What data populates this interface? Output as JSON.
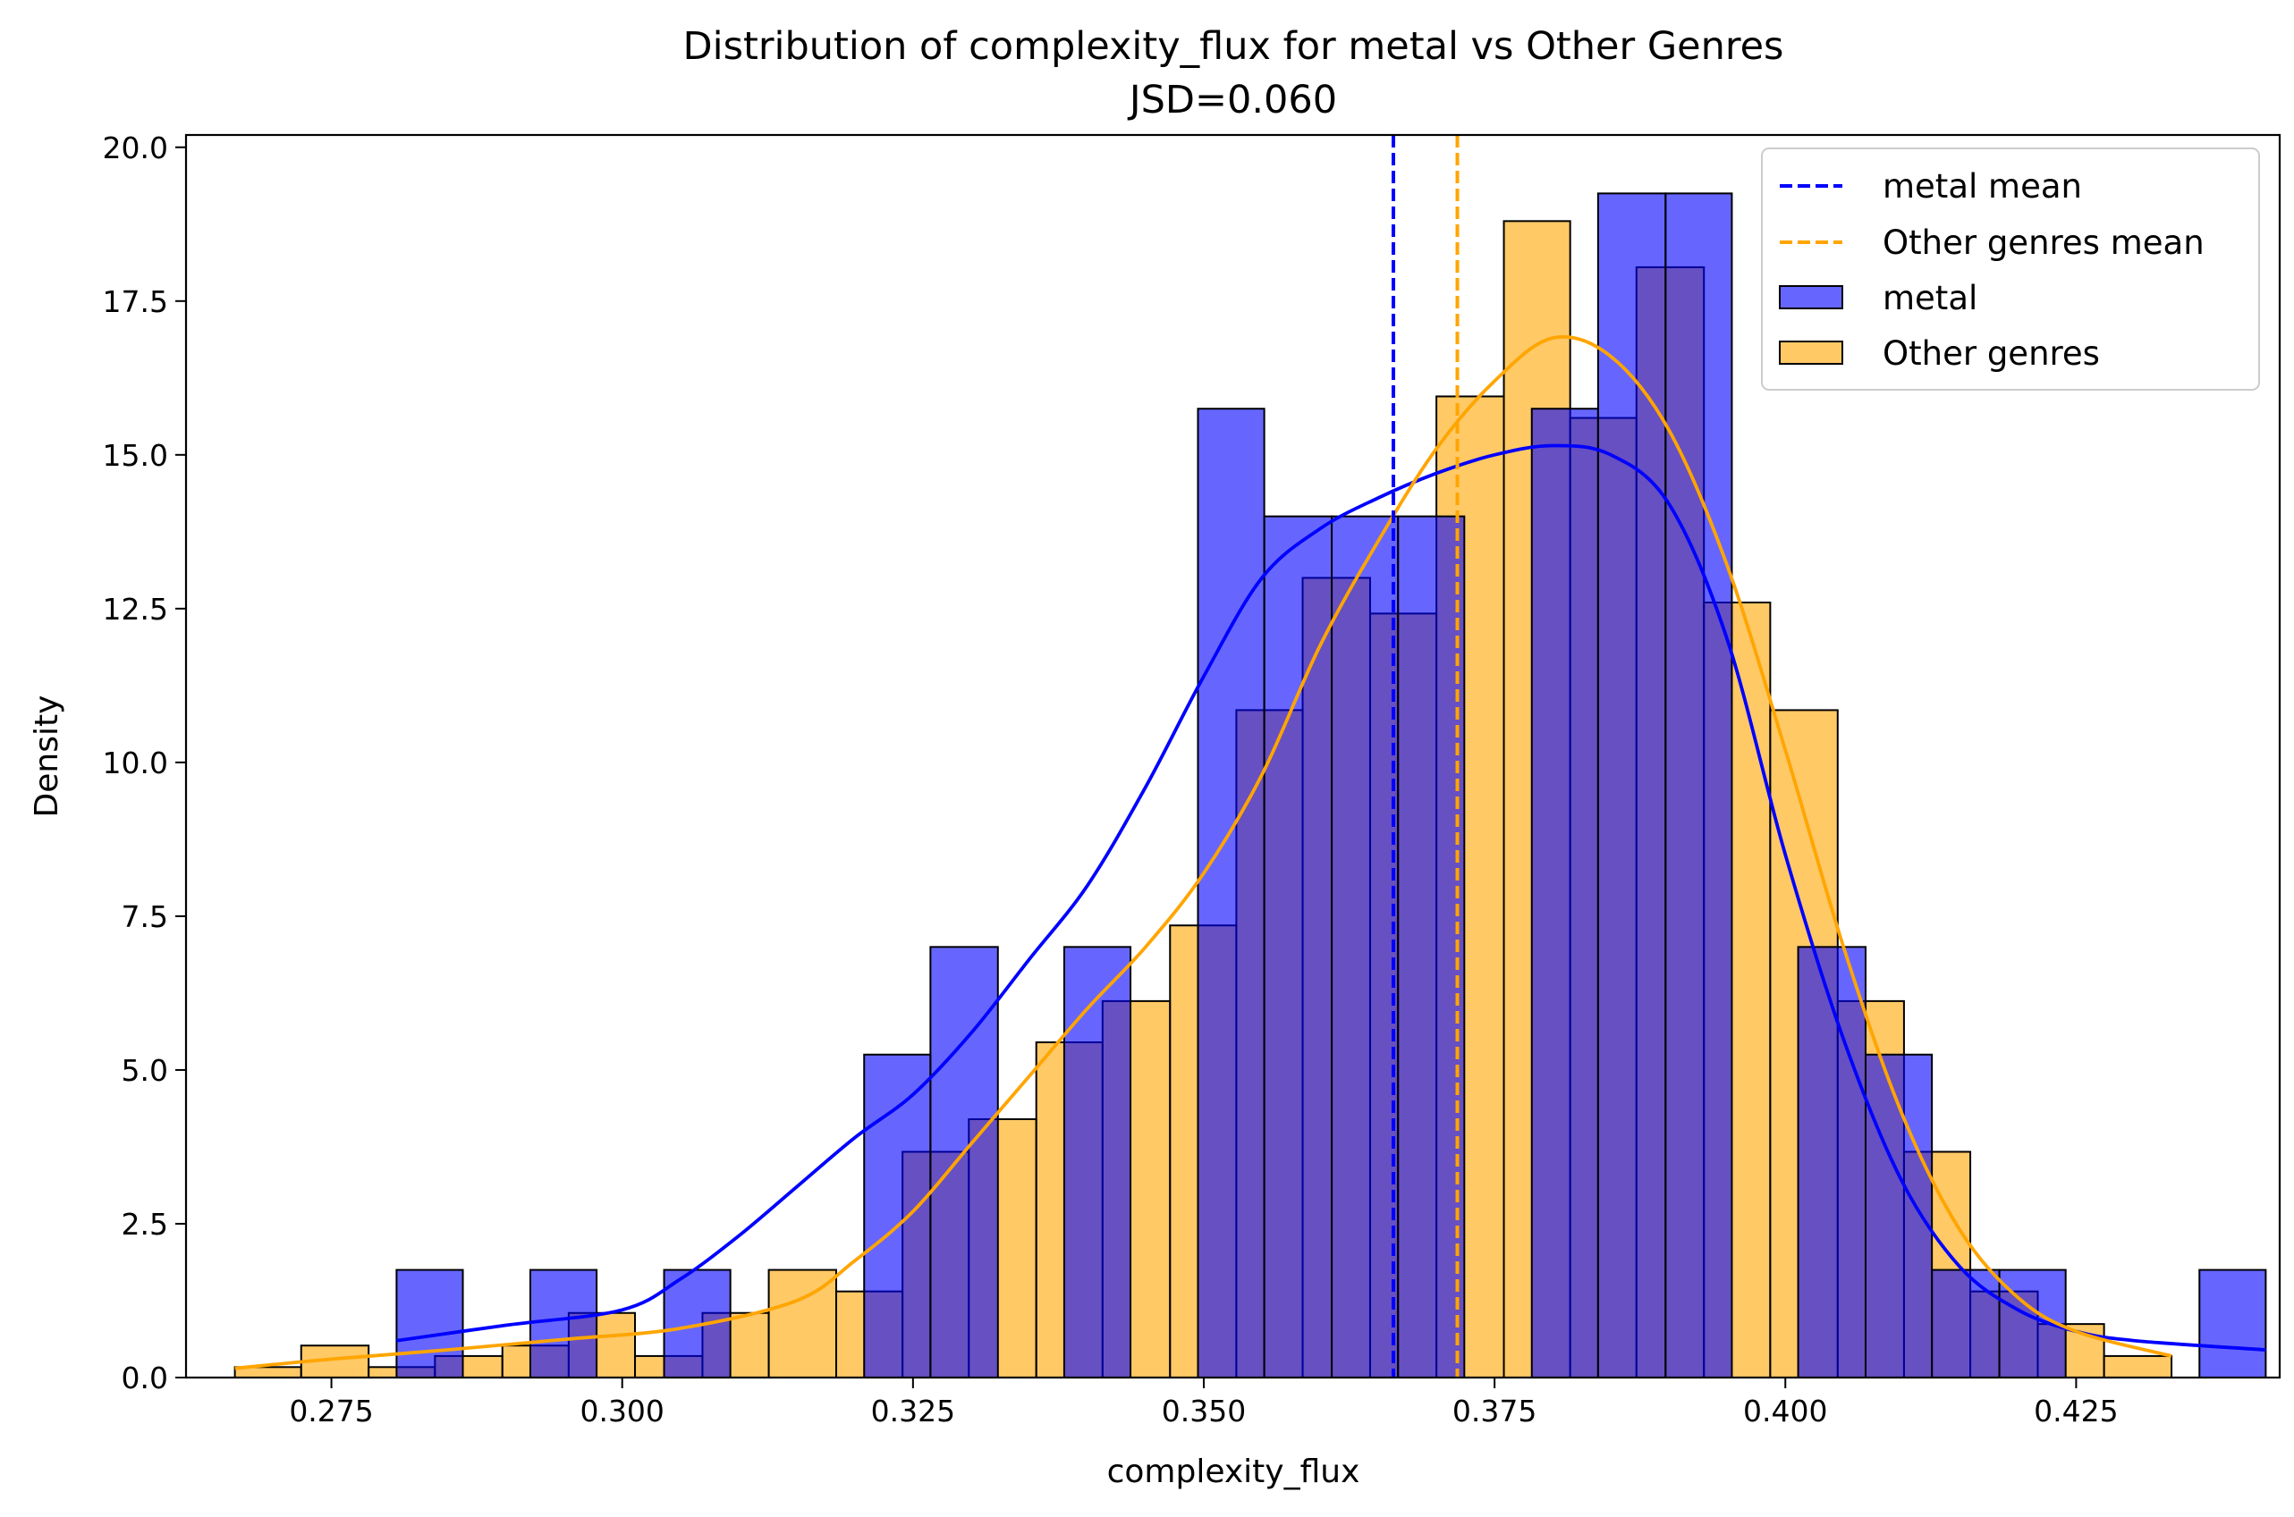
{
  "chart_data": {
    "type": "histogram",
    "title": "Distribution of complexity_flux for metal vs Other Genres",
    "subtitle": "JSD=0.060",
    "xlabel": "complexity_flux",
    "ylabel": "Density",
    "xlim": [
      0.2625,
      0.4425
    ],
    "ylim": [
      0,
      20.2
    ],
    "xticks": [
      "0.275",
      "0.300",
      "0.325",
      "0.350",
      "0.375",
      "0.400",
      "0.425"
    ],
    "yticks": [
      "0.0",
      "2.5",
      "5.0",
      "7.5",
      "10.0",
      "12.5",
      "15.0",
      "17.5",
      "20.0"
    ],
    "grid": false,
    "legend_position": "top-right",
    "legend": [
      {
        "label": "metal mean",
        "kind": "dashed-line",
        "color": "#0000ff"
      },
      {
        "label": "Other genres mean",
        "kind": "dashed-line",
        "color": "#ffa500"
      },
      {
        "label": "metal",
        "kind": "patch",
        "color": "#0000ff"
      },
      {
        "label": "Other genres",
        "kind": "patch",
        "color": "#ffa500"
      }
    ],
    "series": [
      {
        "name": "metal",
        "color": "#0000ff",
        "opacity": 0.6,
        "bin_edges": [
          0.2806,
          0.2863,
          0.2921,
          0.2978,
          0.3036,
          0.3093,
          0.315,
          0.3208,
          0.3265,
          0.3323,
          0.338,
          0.3437,
          0.3495,
          0.3552,
          0.361,
          0.3667,
          0.3724,
          0.3782,
          0.3839,
          0.3897,
          0.3954,
          0.4011,
          0.4069,
          0.4126,
          0.4184,
          0.4241,
          0.4298,
          0.4356,
          0.4413,
          0.4471,
          0.4528
        ],
        "densities": [
          1.75,
          0.0,
          1.75,
          0.0,
          1.75,
          0.0,
          0.0,
          5.25,
          7.0,
          0.0,
          7.0,
          0.0,
          15.75,
          14.0,
          14.0,
          14.0,
          0.0,
          15.75,
          19.25,
          19.25,
          0.0,
          7.0,
          5.25,
          1.75,
          1.75,
          0.0,
          0.0,
          1.75,
          0.0,
          0.0
        ],
        "mean": 0.3663,
        "kde_x": [
          0.2806,
          0.29,
          0.3,
          0.305,
          0.31,
          0.315,
          0.32,
          0.325,
          0.33,
          0.335,
          0.34,
          0.345,
          0.35,
          0.355,
          0.36,
          0.365,
          0.37,
          0.375,
          0.38,
          0.385,
          0.39,
          0.395,
          0.4,
          0.405,
          0.41,
          0.415,
          0.42,
          0.425,
          0.43,
          0.4413
        ],
        "kde_y": [
          0.6,
          0.85,
          1.1,
          1.6,
          2.3,
          3.1,
          3.9,
          4.6,
          5.6,
          6.8,
          8.0,
          9.6,
          11.4,
          13.0,
          13.8,
          14.3,
          14.7,
          15.0,
          15.15,
          15.0,
          14.2,
          12.0,
          8.5,
          5.5,
          3.2,
          1.8,
          1.1,
          0.75,
          0.6,
          0.45
        ]
      },
      {
        "name": "Other genres",
        "color": "#ffa500",
        "opacity": 0.6,
        "bin_edges": [
          0.2667,
          0.2724,
          0.2782,
          0.2839,
          0.2897,
          0.2954,
          0.3011,
          0.3069,
          0.3126,
          0.3184,
          0.3241,
          0.3298,
          0.3356,
          0.3413,
          0.3471,
          0.3528,
          0.3585,
          0.3643,
          0.37,
          0.3758,
          0.3815,
          0.3872,
          0.393,
          0.3987,
          0.4045,
          0.4102,
          0.4159,
          0.4217,
          0.4274,
          0.4332,
          0.4389
        ],
        "densities": [
          0.17,
          0.52,
          0.17,
          0.35,
          0.52,
          1.05,
          0.35,
          1.05,
          1.75,
          1.4,
          3.67,
          4.2,
          5.45,
          6.12,
          7.35,
          10.85,
          13.0,
          12.42,
          15.95,
          18.8,
          15.6,
          18.05,
          12.6,
          10.85,
          6.12,
          3.67,
          1.4,
          0.87,
          0.35,
          0.0
        ],
        "mean": 0.3718,
        "kde_x": [
          0.2667,
          0.275,
          0.285,
          0.295,
          0.305,
          0.315,
          0.32,
          0.325,
          0.33,
          0.335,
          0.34,
          0.345,
          0.35,
          0.355,
          0.36,
          0.365,
          0.37,
          0.375,
          0.38,
          0.385,
          0.39,
          0.395,
          0.4,
          0.405,
          0.41,
          0.415,
          0.42,
          0.425,
          0.4332
        ],
        "kde_y": [
          0.15,
          0.3,
          0.45,
          0.62,
          0.8,
          1.25,
          1.9,
          2.7,
          3.8,
          4.9,
          6.0,
          7.0,
          8.2,
          9.8,
          11.9,
          13.6,
          15.1,
          16.2,
          16.9,
          16.6,
          15.4,
          13.2,
          10.2,
          7.0,
          4.3,
          2.4,
          1.3,
          0.75,
          0.35
        ]
      }
    ]
  }
}
